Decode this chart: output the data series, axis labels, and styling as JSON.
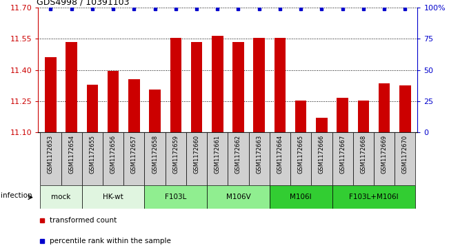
{
  "title": "GDS4998 / 10391103",
  "samples": [
    "GSM1172653",
    "GSM1172654",
    "GSM1172655",
    "GSM1172656",
    "GSM1172657",
    "GSM1172658",
    "GSM1172659",
    "GSM1172660",
    "GSM1172661",
    "GSM1172662",
    "GSM1172663",
    "GSM1172664",
    "GSM1172665",
    "GSM1172666",
    "GSM1172667",
    "GSM1172668",
    "GSM1172669",
    "GSM1172670"
  ],
  "bar_values": [
    11.46,
    11.535,
    11.33,
    11.395,
    11.355,
    11.305,
    11.555,
    11.535,
    11.565,
    11.535,
    11.555,
    11.555,
    11.255,
    11.17,
    11.265,
    11.255,
    11.335,
    11.325
  ],
  "percentile_values": [
    100,
    100,
    100,
    100,
    100,
    100,
    100,
    100,
    100,
    100,
    100,
    100,
    100,
    100,
    100,
    100,
    100,
    100
  ],
  "group_spans": [
    {
      "label": "mock",
      "indices": [
        0,
        1
      ],
      "color": "#e0f5e0"
    },
    {
      "label": "HK-wt",
      "indices": [
        2,
        3,
        4
      ],
      "color": "#e0f5e0"
    },
    {
      "label": "F103L",
      "indices": [
        5,
        6,
        7
      ],
      "color": "#90ee90"
    },
    {
      "label": "M106V",
      "indices": [
        8,
        9,
        10
      ],
      "color": "#90ee90"
    },
    {
      "label": "M106I",
      "indices": [
        11,
        12,
        13
      ],
      "color": "#32cd32"
    },
    {
      "label": "F103L+M106I",
      "indices": [
        14,
        15,
        16,
        17
      ],
      "color": "#32cd32"
    }
  ],
  "ylim": [
    11.1,
    11.7
  ],
  "yticks": [
    11.1,
    11.25,
    11.4,
    11.55,
    11.7
  ],
  "right_ytick_labels": [
    "0",
    "25",
    "50",
    "75",
    "100%"
  ],
  "right_ytick_vals": [
    0,
    25,
    50,
    75,
    100
  ],
  "bar_color": "#cc0000",
  "dot_color": "#0000cc",
  "infection_label": "infection",
  "legend_items": [
    {
      "label": "transformed count",
      "color": "#cc0000"
    },
    {
      "label": "percentile rank within the sample",
      "color": "#0000cc"
    }
  ],
  "sample_box_color": "#d0d0d0",
  "grid_color": "black",
  "axis_color": "black"
}
